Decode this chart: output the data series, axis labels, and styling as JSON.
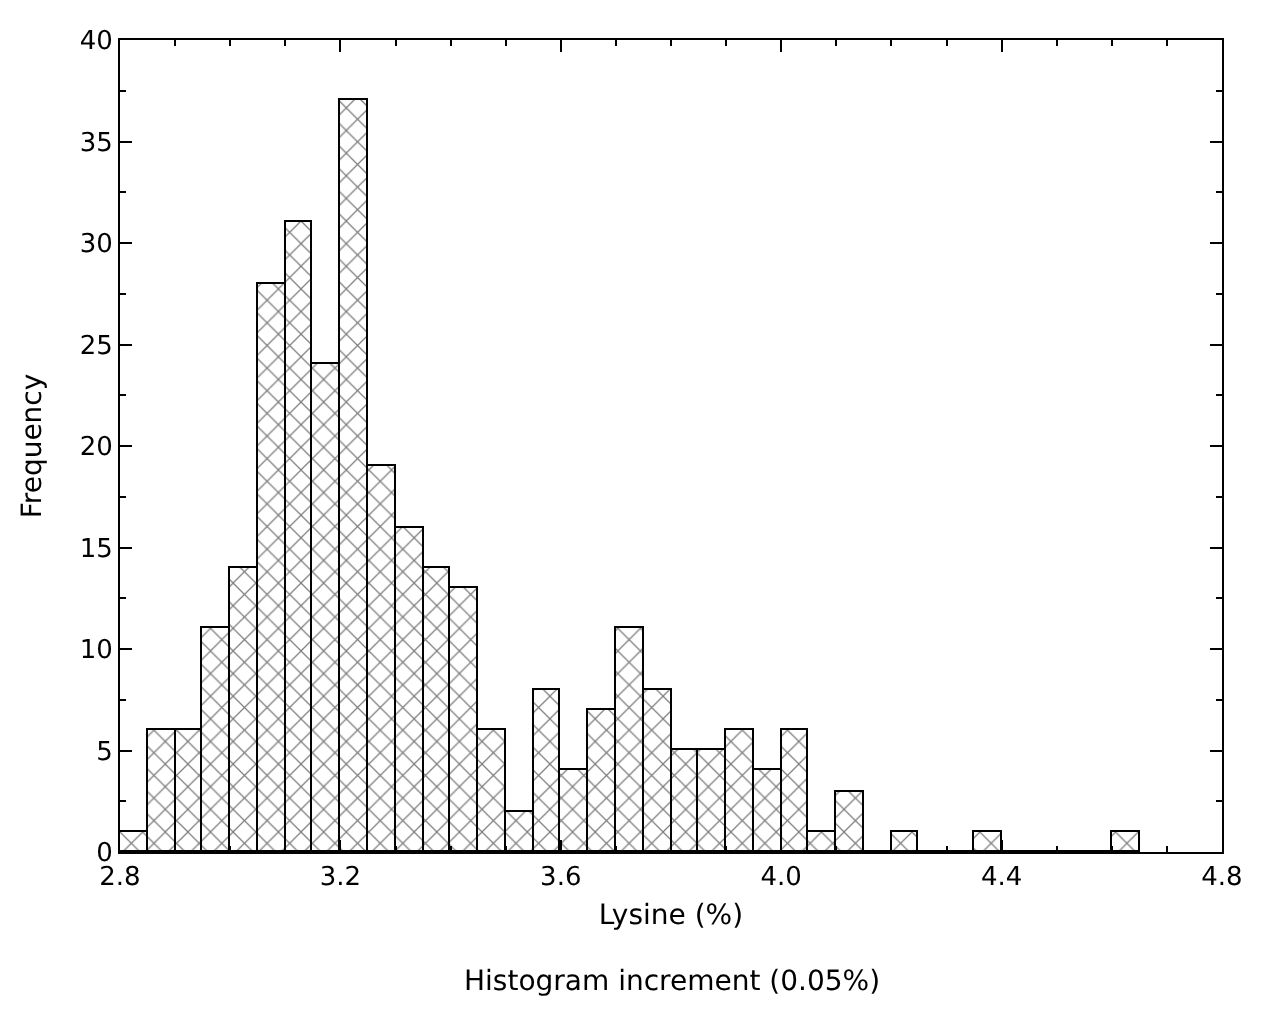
{
  "chart_data": {
    "type": "histogram",
    "xlabel": "Lysine (%)",
    "ylabel": "Frequency",
    "annotations": [
      "Histogram increment (0.05%)"
    ],
    "bins": [
      2.8,
      2.85,
      2.9,
      2.95,
      3.0,
      3.05,
      3.1,
      3.15,
      3.2,
      3.25,
      3.3,
      3.35,
      3.4,
      3.45,
      3.5,
      3.55,
      3.6,
      3.65,
      3.7,
      3.75,
      3.8,
      3.85,
      3.9,
      3.95,
      4.0,
      4.05,
      4.1,
      4.15,
      4.2,
      4.25,
      4.3,
      4.35,
      4.4,
      4.45,
      4.5,
      4.55,
      4.6,
      4.65
    ],
    "values": [
      1,
      6,
      6,
      11,
      14,
      28,
      31,
      24,
      37,
      19,
      16,
      14,
      13,
      6,
      2,
      8,
      4,
      7,
      11,
      8,
      5,
      5,
      6,
      4,
      6,
      1,
      3,
      0,
      1,
      0,
      0,
      1,
      0,
      0,
      0,
      0,
      1
    ],
    "color": "#000000",
    "xlim": [
      2.8,
      4.8
    ],
    "xticks": [
      2.8,
      3.2,
      3.6,
      {
        "value": 4,
        "label": "4.0"
      },
      4.4,
      4.8
    ],
    "ylim": [
      0,
      40
    ],
    "yticks": [
      0,
      5,
      10,
      15,
      20,
      25,
      30,
      35,
      40
    ]
  }
}
